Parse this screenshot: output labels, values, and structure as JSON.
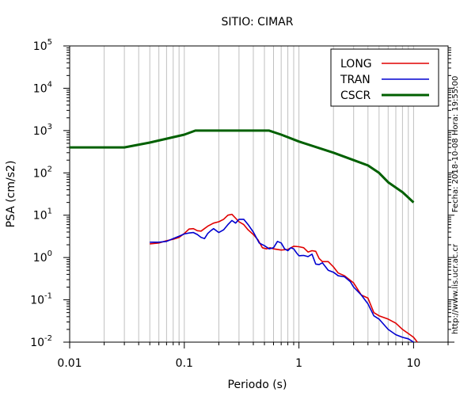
{
  "chart_data": {
    "type": "line",
    "title": "SITIO: CIMAR",
    "xlabel": "Periodo (s)",
    "ylabel": "PSA (cm/s2)",
    "x_scale": "log",
    "y_scale": "log",
    "xlim": [
      0.01,
      20
    ],
    "ylim": [
      0.01,
      100000
    ],
    "grid": "vertical",
    "legend_position": "top-right",
    "x_ticks": [
      {
        "value": 0.01,
        "label": "0.01"
      },
      {
        "value": 0.1,
        "label": "0.1"
      },
      {
        "value": 1,
        "label": "1"
      },
      {
        "value": 10,
        "label": "10"
      }
    ],
    "y_ticks": [
      {
        "value": 0.01,
        "base": "10",
        "exp": "-2"
      },
      {
        "value": 0.1,
        "base": "10",
        "exp": "-1"
      },
      {
        "value": 1,
        "base": "10",
        "exp": "0"
      },
      {
        "value": 10,
        "base": "10",
        "exp": "1"
      },
      {
        "value": 100,
        "base": "10",
        "exp": "2"
      },
      {
        "value": 1000,
        "base": "10",
        "exp": "3"
      },
      {
        "value": 10000,
        "base": "10",
        "exp": "4"
      },
      {
        "value": 100000,
        "base": "10",
        "exp": "5"
      }
    ],
    "series": [
      {
        "name": "LONG",
        "color": "#e00000",
        "points": [
          [
            0.05,
            2.1
          ],
          [
            0.06,
            2.2
          ],
          [
            0.07,
            2.5
          ],
          [
            0.08,
            2.7
          ],
          [
            0.09,
            3.0
          ],
          [
            0.1,
            3.7
          ],
          [
            0.11,
            4.7
          ],
          [
            0.12,
            4.8
          ],
          [
            0.13,
            4.3
          ],
          [
            0.14,
            4.2
          ],
          [
            0.16,
            5.5
          ],
          [
            0.18,
            6.5
          ],
          [
            0.2,
            7.0
          ],
          [
            0.22,
            8.0
          ],
          [
            0.24,
            10.0
          ],
          [
            0.26,
            10.5
          ],
          [
            0.28,
            8.5
          ],
          [
            0.3,
            7.0
          ],
          [
            0.33,
            6.0
          ],
          [
            0.36,
            4.5
          ],
          [
            0.4,
            3.5
          ],
          [
            0.44,
            2.6
          ],
          [
            0.48,
            1.7
          ],
          [
            0.52,
            1.6
          ],
          [
            0.56,
            1.7
          ],
          [
            0.6,
            1.6
          ],
          [
            0.7,
            1.5
          ],
          [
            0.8,
            1.55
          ],
          [
            0.9,
            1.85
          ],
          [
            1.0,
            1.8
          ],
          [
            1.1,
            1.7
          ],
          [
            1.2,
            1.35
          ],
          [
            1.3,
            1.45
          ],
          [
            1.4,
            1.4
          ],
          [
            1.5,
            0.95
          ],
          [
            1.6,
            0.8
          ],
          [
            1.8,
            0.8
          ],
          [
            2.0,
            0.6
          ],
          [
            2.2,
            0.43
          ],
          [
            2.5,
            0.37
          ],
          [
            3.0,
            0.25
          ],
          [
            3.5,
            0.13
          ],
          [
            4.0,
            0.11
          ],
          [
            4.5,
            0.05
          ],
          [
            5.0,
            0.042
          ],
          [
            6.0,
            0.035
          ],
          [
            7.0,
            0.028
          ],
          [
            8.0,
            0.02
          ],
          [
            9.0,
            0.016
          ],
          [
            10.0,
            0.013
          ],
          [
            10.8,
            0.01
          ]
        ]
      },
      {
        "name": "TRAN",
        "color": "#0000d0",
        "points": [
          [
            0.05,
            2.3
          ],
          [
            0.06,
            2.3
          ],
          [
            0.07,
            2.4
          ],
          [
            0.08,
            2.8
          ],
          [
            0.09,
            3.2
          ],
          [
            0.1,
            3.6
          ],
          [
            0.11,
            3.8
          ],
          [
            0.12,
            3.9
          ],
          [
            0.13,
            3.5
          ],
          [
            0.14,
            3.0
          ],
          [
            0.15,
            2.8
          ],
          [
            0.16,
            3.7
          ],
          [
            0.17,
            4.3
          ],
          [
            0.18,
            4.8
          ],
          [
            0.2,
            3.9
          ],
          [
            0.22,
            4.5
          ],
          [
            0.24,
            6.0
          ],
          [
            0.26,
            7.5
          ],
          [
            0.28,
            6.5
          ],
          [
            0.3,
            8.0
          ],
          [
            0.33,
            8.0
          ],
          [
            0.36,
            6.0
          ],
          [
            0.4,
            4.0
          ],
          [
            0.45,
            2.2
          ],
          [
            0.5,
            1.9
          ],
          [
            0.55,
            1.6
          ],
          [
            0.6,
            1.7
          ],
          [
            0.65,
            2.4
          ],
          [
            0.7,
            2.2
          ],
          [
            0.75,
            1.6
          ],
          [
            0.8,
            1.45
          ],
          [
            0.85,
            1.7
          ],
          [
            0.9,
            1.6
          ],
          [
            0.95,
            1.3
          ],
          [
            1.0,
            1.1
          ],
          [
            1.1,
            1.12
          ],
          [
            1.2,
            1.05
          ],
          [
            1.3,
            1.2
          ],
          [
            1.4,
            0.7
          ],
          [
            1.5,
            0.68
          ],
          [
            1.6,
            0.75
          ],
          [
            1.8,
            0.5
          ],
          [
            2.0,
            0.45
          ],
          [
            2.2,
            0.37
          ],
          [
            2.5,
            0.35
          ],
          [
            2.8,
            0.27
          ],
          [
            3.0,
            0.2
          ],
          [
            3.5,
            0.13
          ],
          [
            4.0,
            0.08
          ],
          [
            4.5,
            0.042
          ],
          [
            5.0,
            0.035
          ],
          [
            6.0,
            0.02
          ],
          [
            7.0,
            0.015
          ],
          [
            8.0,
            0.013
          ],
          [
            9.0,
            0.012
          ],
          [
            10.0,
            0.01
          ]
        ]
      },
      {
        "name": "CSCR",
        "color": "#006000",
        "points": [
          [
            0.01,
            400
          ],
          [
            0.03,
            400
          ],
          [
            0.05,
            520
          ],
          [
            0.1,
            800
          ],
          [
            0.125,
            1000
          ],
          [
            0.55,
            1000
          ],
          [
            0.7,
            800
          ],
          [
            1.0,
            550
          ],
          [
            2.0,
            300
          ],
          [
            3.0,
            200
          ],
          [
            4.0,
            150
          ],
          [
            5.0,
            100
          ],
          [
            6.0,
            60
          ],
          [
            8.0,
            35
          ],
          [
            10.0,
            20
          ]
        ]
      }
    ],
    "annotations": [
      "Fecha: 2018-10-08 Hora: 19:55:00",
      "http://www.lis.ucr.ac.cr"
    ]
  }
}
